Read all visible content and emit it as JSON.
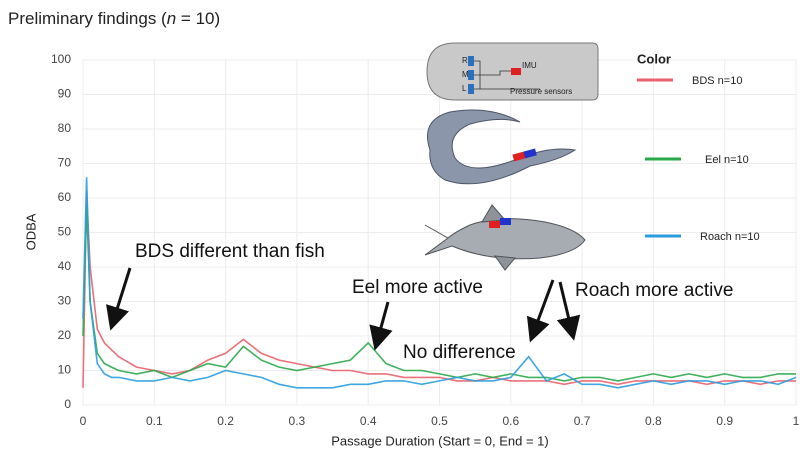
{
  "chart_data": {
    "type": "line",
    "title": [
      "Preliminary findings (",
      "n",
      " = 10)"
    ],
    "x_label": "Passage Duration (Start = 0, End = 1)",
    "y_label": "ODBA",
    "legend_title": "Color",
    "xlim": [
      0,
      1
    ],
    "ylim": [
      0,
      100
    ],
    "xticks": [
      0,
      0.1,
      0.2,
      0.3,
      0.4,
      0.5,
      0.6,
      0.7,
      0.8,
      0.9,
      1
    ],
    "yticks": [
      0,
      10,
      20,
      30,
      40,
      50,
      60,
      70,
      80,
      90,
      100
    ],
    "grid": true,
    "x": [
      0,
      0.005,
      0.01,
      0.02,
      0.03,
      0.04,
      0.05,
      0.075,
      0.1,
      0.125,
      0.15,
      0.175,
      0.2,
      0.225,
      0.25,
      0.275,
      0.3,
      0.325,
      0.35,
      0.375,
      0.4,
      0.425,
      0.45,
      0.475,
      0.5,
      0.525,
      0.55,
      0.575,
      0.6,
      0.625,
      0.65,
      0.675,
      0.7,
      0.725,
      0.75,
      0.775,
      0.8,
      0.825,
      0.85,
      0.875,
      0.9,
      0.925,
      0.95,
      0.975,
      1
    ],
    "series": [
      {
        "name": "BDS n=10",
        "color": "#e8606a",
        "values": [
          5,
          62,
          40,
          22,
          18,
          16,
          14,
          11,
          10,
          9,
          10,
          13,
          15,
          19,
          15,
          13,
          12,
          11,
          10,
          10,
          9,
          9,
          8,
          8,
          8,
          7,
          7,
          8,
          7,
          7,
          7,
          6,
          7,
          7,
          6,
          7,
          7,
          7,
          7,
          6,
          7,
          7,
          6,
          7,
          7
        ]
      },
      {
        "name": "Eel n=10",
        "color": "#2aa84a",
        "values": [
          20,
          58,
          30,
          15,
          12,
          11,
          10,
          9,
          10,
          8,
          10,
          12,
          11,
          17,
          13,
          11,
          10,
          11,
          12,
          13,
          18,
          12,
          10,
          10,
          9,
          8,
          9,
          8,
          9,
          8,
          8,
          7,
          8,
          8,
          7,
          8,
          9,
          8,
          9,
          8,
          9,
          8,
          8,
          9,
          9
        ]
      },
      {
        "name": "Roach n=10",
        "color": "#2a9de0",
        "values": [
          25,
          66,
          30,
          12,
          9,
          8,
          8,
          7,
          7,
          8,
          7,
          8,
          10,
          9,
          8,
          6,
          5,
          5,
          5,
          6,
          6,
          7,
          7,
          6,
          7,
          8,
          7,
          7,
          8,
          14,
          7,
          9,
          6,
          6,
          5,
          6,
          7,
          6,
          7,
          7,
          6,
          7,
          7,
          6,
          8
        ]
      }
    ],
    "annotations": [
      "BDS different than fish",
      "Eel more active",
      "No difference",
      "Roach more active"
    ],
    "inset_labels": [
      "R",
      "M",
      "L",
      "IMU",
      "Pressure sensors"
    ]
  }
}
